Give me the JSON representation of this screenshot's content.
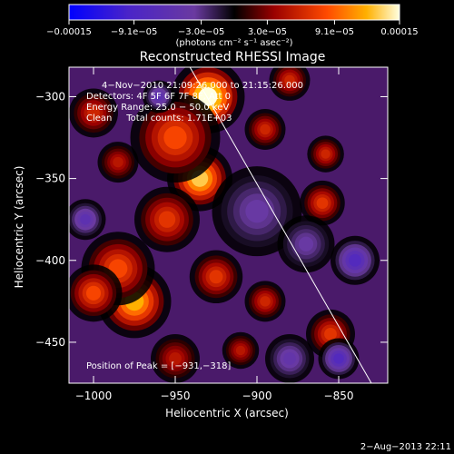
{
  "chart_data": {
    "type": "heatmap",
    "title": "Reconstructed RHESSI Image",
    "xlabel": "Heliocentric X (arcsec)",
    "ylabel": "Heliocentric Y (arcsec)",
    "xlim": [
      -1015,
      -820
    ],
    "ylim": [
      -475,
      -282
    ],
    "x_ticks": [
      -1000,
      -950,
      -900,
      -850
    ],
    "y_ticks": [
      -300,
      -350,
      -400,
      -450
    ],
    "x_tick_labels": [
      "−1000",
      "−950",
      "−900",
      "−850"
    ],
    "y_tick_labels": [
      "−300",
      "−350",
      "−400",
      "−450"
    ],
    "colorbar": {
      "range": [
        -0.00015,
        0.00015
      ],
      "ticks": [
        -0.00015,
        -9.1e-05,
        -3e-05,
        3e-05,
        9.1e-05,
        0.00015
      ],
      "tick_labels": [
        "−0.00015",
        "−9.1e−05",
        "−3.0e−05",
        "3.0e−05",
        "9.1e−05",
        "0.00015"
      ],
      "unit_label": "(photons cm⁻² s⁻¹ asec⁻²)",
      "colors": [
        "#0000ff",
        "#5a22b4",
        "#7a3aa6",
        "#000000",
        "#8a0000",
        "#e02800",
        "#ff8a00",
        "#ffe24a",
        "#ffffff"
      ]
    },
    "annotations": {
      "time": "4−Nov−2010 21:09:26.000 to 21:15:26.000",
      "detectors": "Detectors: 4F 5F 6F 7F 8F, Att 0",
      "energy": "Energy Range: 25.0 − 50.0 keV",
      "clean": "Clean     Total counts: 1.71E+03",
      "peak": "Position of Peak = [−931,−318]"
    },
    "limb_line": {
      "x": [
        -941,
        -830
      ],
      "y": [
        -282,
        -475
      ]
    },
    "blobs": [
      {
        "x": -930,
        "y": -300,
        "r": 18,
        "v": 0.00015
      },
      {
        "x": -935,
        "y": -350,
        "r": 16,
        "v": 0.00013
      },
      {
        "x": -950,
        "y": -325,
        "r": 22,
        "v": 8e-05
      },
      {
        "x": -955,
        "y": -375,
        "r": 16,
        "v": 7e-05
      },
      {
        "x": -975,
        "y": -425,
        "r": 18,
        "v": 0.00012
      },
      {
        "x": -985,
        "y": -405,
        "r": 18,
        "v": 8e-05
      },
      {
        "x": -1000,
        "y": -420,
        "r": 14,
        "v": 8e-05
      },
      {
        "x": -1000,
        "y": -310,
        "r": 12,
        "v": 6e-05
      },
      {
        "x": -985,
        "y": -340,
        "r": 10,
        "v": 5e-05
      },
      {
        "x": -925,
        "y": -410,
        "r": 13,
        "v": 7e-05
      },
      {
        "x": -895,
        "y": -320,
        "r": 10,
        "v": 6e-05
      },
      {
        "x": -880,
        "y": -290,
        "r": 10,
        "v": 6e-05
      },
      {
        "x": -860,
        "y": -365,
        "r": 11,
        "v": 7e-05
      },
      {
        "x": -858,
        "y": -335,
        "r": 9,
        "v": 6e-05
      },
      {
        "x": -855,
        "y": -445,
        "r": 12,
        "v": 7e-05
      },
      {
        "x": -895,
        "y": -425,
        "r": 10,
        "v": 6e-05
      },
      {
        "x": -910,
        "y": -455,
        "r": 9,
        "v": 5e-05
      },
      {
        "x": -1005,
        "y": -375,
        "r": 10,
        "v": -6e-05
      },
      {
        "x": -950,
        "y": -460,
        "r": 12,
        "v": 5e-05
      },
      {
        "x": -900,
        "y": -370,
        "r": 22,
        "v": -4e-05
      },
      {
        "x": -840,
        "y": -400,
        "r": 12,
        "v": -8e-05
      },
      {
        "x": -870,
        "y": -390,
        "r": 14,
        "v": -4e-05
      },
      {
        "x": -960,
        "y": -300,
        "r": 8,
        "v": -6e-05
      },
      {
        "x": -850,
        "y": -460,
        "r": 10,
        "v": -8e-05
      },
      {
        "x": -880,
        "y": -460,
        "r": 12,
        "v": -5e-05
      }
    ]
  },
  "footer": {
    "date": "2−Aug−2013 22:11"
  }
}
